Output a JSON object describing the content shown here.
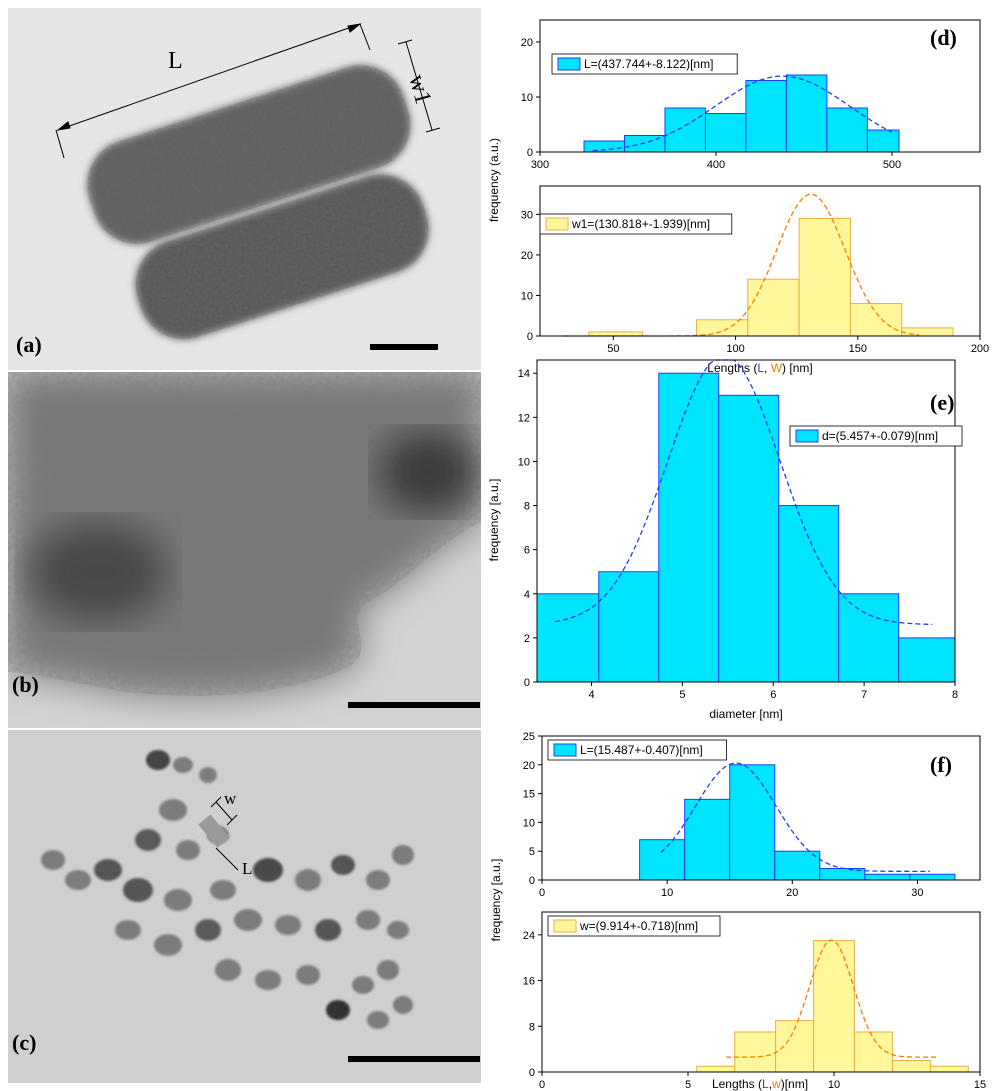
{
  "images": {
    "a": {
      "label": "(a)",
      "dim_L": "L",
      "dim_w": "w1"
    },
    "b": {
      "label": "(b)"
    },
    "c": {
      "label": "(c)",
      "dim_w": "w",
      "dim_L": "L"
    }
  },
  "chart_data": [
    {
      "type": "bar",
      "panel": "(d)",
      "title": "",
      "xlabel_parts": [
        "Lengths (",
        "L",
        ", ",
        "W",
        ") [nm]"
      ],
      "ylabel": "frequency (a.u.)",
      "subplots": [
        {
          "name": "L=(437.744+-8.122)[nm]",
          "color": "#00e5ff",
          "fit_color": "#1f3fff",
          "xlim": [
            300,
            550
          ],
          "ylim": [
            0,
            24
          ],
          "xticks": [
            300,
            400,
            500
          ],
          "yticks": [
            0,
            10,
            20
          ],
          "bins": [
            [
              325,
              348,
              2
            ],
            [
              348,
              371,
              3
            ],
            [
              371,
              394,
              8
            ],
            [
              394,
              417,
              7
            ],
            [
              417,
              440,
              13
            ],
            [
              440,
              463,
              14
            ],
            [
              463,
              486,
              8
            ],
            [
              486,
              504,
              4
            ]
          ],
          "fit": {
            "mu": 437.744,
            "sigma": 38,
            "amp": 13.8,
            "from": 330,
            "to": 500
          }
        },
        {
          "name": "w1=(130.818+-1.939)[nm]",
          "color": "#fff799",
          "fit_color": "#ff7a00",
          "xlim": [
            20,
            200
          ],
          "ylim": [
            0,
            37
          ],
          "xticks": [
            50,
            100,
            150,
            200
          ],
          "yticks": [
            0,
            10,
            20,
            30
          ],
          "bins": [
            [
              40,
              62,
              1
            ],
            [
              62,
              84,
              0
            ],
            [
              84,
              105,
              4
            ],
            [
              105,
              126,
              14
            ],
            [
              126,
              147,
              29
            ],
            [
              147,
              168,
              8
            ],
            [
              168,
              189,
              2
            ]
          ],
          "fit": {
            "mu": 130.818,
            "sigma": 14,
            "amp": 35,
            "from": 30,
            "to": 175
          }
        }
      ]
    },
    {
      "type": "bar",
      "panel": "(e)",
      "title": "",
      "xlabel": "diameter [nm]",
      "ylabel": "frequency [a.u.]",
      "subplots": [
        {
          "name": "d=(5.457+-0.079)[nm]",
          "color": "#00e5ff",
          "fit_color": "#1f3fff",
          "xlim": [
            3.4,
            8.0
          ],
          "ylim": [
            0,
            14.6
          ],
          "xticks": [
            4,
            5,
            6,
            7,
            8
          ],
          "yticks": [
            0,
            2,
            4,
            6,
            8,
            10,
            12,
            14
          ],
          "bins": [
            [
              3.4,
              4.08,
              4
            ],
            [
              4.08,
              4.74,
              5
            ],
            [
              4.74,
              5.4,
              14
            ],
            [
              5.4,
              6.06,
              13
            ],
            [
              6.06,
              6.72,
              8
            ],
            [
              6.72,
              7.38,
              4
            ],
            [
              7.38,
              8.0,
              2
            ]
          ],
          "fit": {
            "mu": 5.457,
            "sigma": 0.62,
            "amp": 12.2,
            "base": 2.6,
            "from": 3.6,
            "to": 7.75
          }
        }
      ]
    },
    {
      "type": "bar",
      "panel": "(f)",
      "title": "",
      "xlabel_parts": [
        "Lengths (",
        "L",
        ",",
        "w",
        ")[nm]"
      ],
      "ylabel": "frequency [a.u.]",
      "subplots": [
        {
          "name": "L=(15.487+-0.407)[nm]",
          "color": "#00e5ff",
          "fit_color": "#1f3fff",
          "xlim": [
            0,
            35
          ],
          "ylim": [
            0,
            25
          ],
          "xticks": [
            0,
            10,
            20,
            30
          ],
          "yticks": [
            0,
            5,
            10,
            15,
            20,
            25
          ],
          "bins": [
            [
              7.8,
              11.4,
              7
            ],
            [
              11.4,
              15,
              14
            ],
            [
              15,
              18.6,
              20
            ],
            [
              18.6,
              22.2,
              5
            ],
            [
              22.2,
              25.8,
              2
            ],
            [
              25.8,
              29.4,
              1
            ],
            [
              29.4,
              33,
              1
            ]
          ],
          "fit": {
            "mu": 15.487,
            "sigma": 3.2,
            "amp": 18.8,
            "base": 1.5,
            "from": 9.5,
            "to": 31
          }
        },
        {
          "name": "w=(9.914+-0.718)[nm]",
          "color": "#fff799",
          "fit_color": "#ff7a00",
          "xlim": [
            0,
            15
          ],
          "ylim": [
            0,
            28
          ],
          "xticks": [
            0,
            5,
            10,
            15
          ],
          "yticks": [
            0,
            8,
            16,
            24
          ],
          "bins": [
            [
              5.3,
              6.6,
              1
            ],
            [
              6.6,
              8,
              7
            ],
            [
              8,
              9.3,
              9
            ],
            [
              9.3,
              10.7,
              23
            ],
            [
              10.7,
              12,
              7
            ],
            [
              12,
              13.3,
              2
            ],
            [
              13.3,
              14.6,
              1
            ]
          ],
          "fit": {
            "mu": 9.914,
            "sigma": 0.75,
            "amp": 20.5,
            "base": 2.6,
            "from": 6.3,
            "to": 13.5
          }
        }
      ]
    }
  ]
}
